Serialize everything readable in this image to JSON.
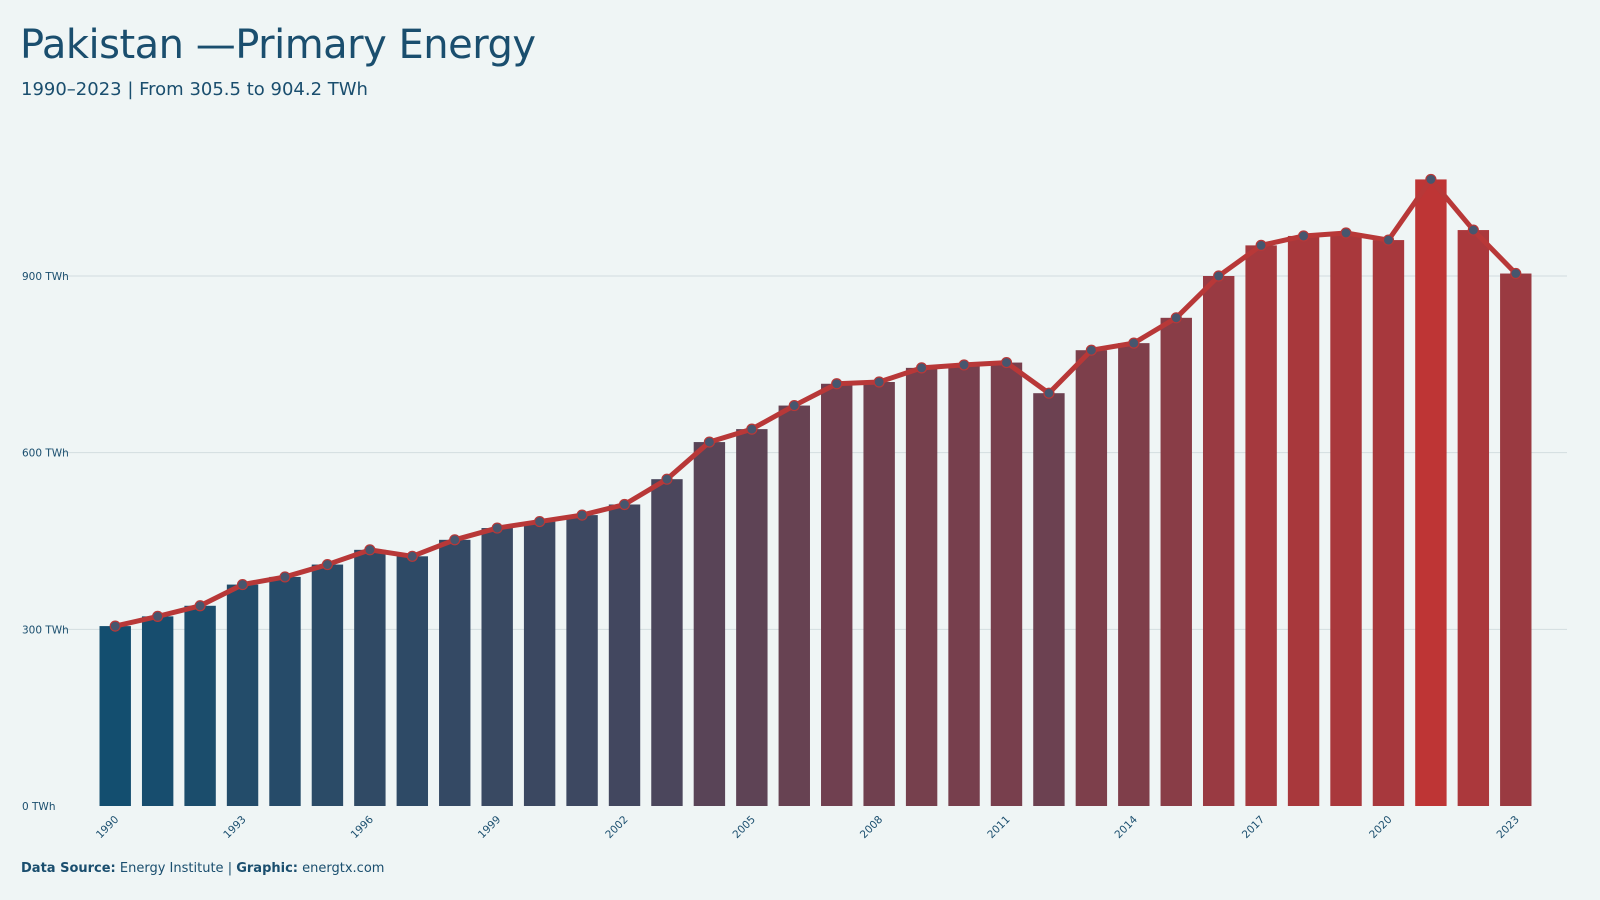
{
  "header": {
    "title": "Pakistan —Primary Energy",
    "subtitle": "1990–2023 | From 305.5 to 904.2 TWh"
  },
  "footer": {
    "source_label": "Data Source:",
    "source_value": "Energy Institute",
    "separator": "|",
    "graphic_label": "Graphic:",
    "graphic_value": "energtx.com"
  },
  "colors": {
    "start": "#134e6f",
    "end": "#be3535",
    "line": "#b83838",
    "marker_fill": "#47566e",
    "grid": "#d2dcdf",
    "text": "#1a4e6e",
    "background": "#eff5f5"
  },
  "chart_data": {
    "type": "bar",
    "title": "Pakistan —Primary Energy",
    "subtitle": "1990–2023 | From 305.5 to 904.2 TWh",
    "unit": "TWh",
    "categories": [
      "1990",
      "1991",
      "1992",
      "1993",
      "1994",
      "1995",
      "1996",
      "1997",
      "1998",
      "1999",
      "2000",
      "2001",
      "2002",
      "2003",
      "2004",
      "2005",
      "2006",
      "2007",
      "2008",
      "2009",
      "2010",
      "2011",
      "2012",
      "2013",
      "2014",
      "2015",
      "2016",
      "2017",
      "2018",
      "2019",
      "2020",
      "2021",
      "2022",
      "2023"
    ],
    "x_tick_labels": [
      "1990",
      "1993",
      "1996",
      "1999",
      "2002",
      "2005",
      "2008",
      "2011",
      "2014",
      "2017",
      "2020",
      "2023"
    ],
    "y_ticks": [
      {
        "value": 0,
        "label": "0 TWh"
      },
      {
        "value": 300,
        "label": "300 TWh"
      },
      {
        "value": 600,
        "label": "600 TWh"
      },
      {
        "value": 900,
        "label": "900 TWh"
      }
    ],
    "ylim": [
      0,
      1135
    ],
    "values": [
      305.5,
      322,
      340,
      376,
      389,
      410,
      435,
      424,
      452,
      472,
      483,
      494,
      512,
      555,
      618,
      640,
      680,
      717,
      720,
      744,
      749,
      753,
      701,
      774,
      786,
      829,
      900,
      952,
      968,
      973,
      961,
      1064,
      978,
      904.2
    ],
    "series": [
      {
        "type": "bar",
        "values_ref": "values"
      },
      {
        "type": "line",
        "values_ref": "values",
        "markers": true
      }
    ],
    "grid": true,
    "legend": "none"
  }
}
